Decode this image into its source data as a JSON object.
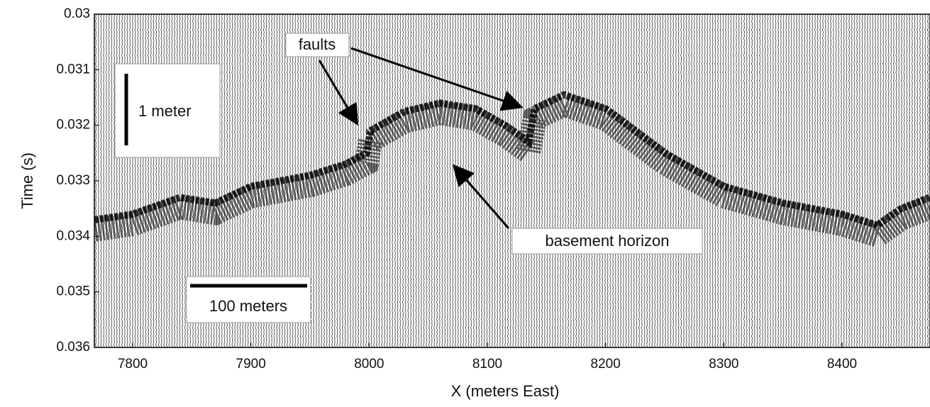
{
  "chart_data": {
    "type": "line",
    "x_label": "X (meters East)",
    "y_label": "Time (s)",
    "x": [
      7768,
      7800,
      7840,
      7870,
      7900,
      7950,
      7980,
      7998,
      8001,
      8030,
      8060,
      8090,
      8115,
      8135,
      8140,
      8165,
      8200,
      8250,
      8300,
      8350,
      8400,
      8430,
      8450,
      8474
    ],
    "values": [
      0.0337,
      0.0336,
      0.0333,
      0.0334,
      0.0331,
      0.0329,
      0.0327,
      0.0325,
      0.0321,
      0.03175,
      0.0316,
      0.0317,
      0.032,
      0.0323,
      0.0317,
      0.03145,
      0.0317,
      0.0325,
      0.0331,
      0.0334,
      0.0336,
      0.0338,
      0.0335,
      0.0333
    ],
    "color": "#000000",
    "xlim": [
      7767.6,
      8474.4
    ],
    "xticks": [
      7800,
      7900,
      8000,
      8100,
      8200,
      8300,
      8400
    ],
    "ylim": [
      0.036,
      0.03
    ],
    "yticks": [
      0.03,
      0.031,
      0.032,
      0.033,
      0.034,
      0.035,
      0.036
    ],
    "annotations": {
      "faults": "faults",
      "horizon": "basement horizon",
      "vertical_scale": "1 meter",
      "horizontal_scale": "100 meters"
    }
  }
}
